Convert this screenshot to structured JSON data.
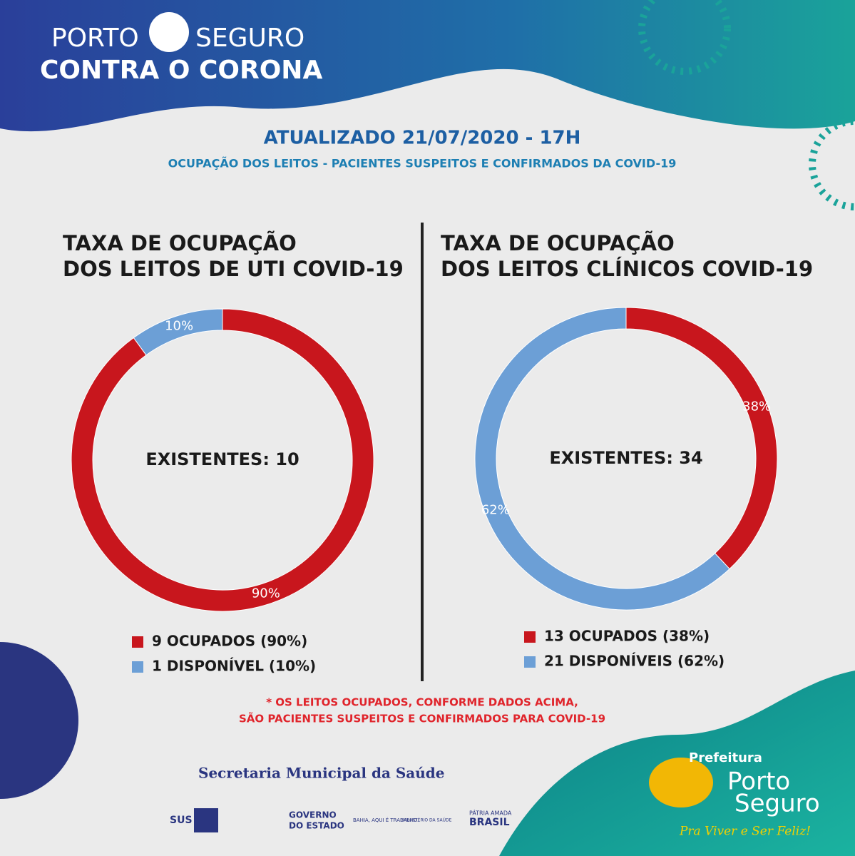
{
  "header": {
    "brand_left": "PORTO",
    "brand_right": "SEGURO",
    "brand_bottom": "CONTRA O CORONA"
  },
  "updated": "ATUALIZADO 21/07/2020 - 17H",
  "subtitle": "OCUPAÇÃO DOS LEITOS - PACIENTES SUSPEITOS E CONFIRMADOS DA COVID-19",
  "chart_data": [
    {
      "type": "donut",
      "title": [
        "TAXA DE OCUPAÇÃO",
        "DOS LEITOS DE UTI COVID-19"
      ],
      "center_label": "EXISTENTES: 10",
      "categories": [
        "9 OCUPADOS (90%)",
        "1 DISPONÍVEL (10%)"
      ],
      "values": [
        90,
        10
      ],
      "value_labels": [
        "90%",
        "10%"
      ],
      "colors": [
        "#c8161d",
        "#6c9fd6"
      ]
    },
    {
      "type": "donut",
      "title": [
        "TAXA DE OCUPAÇÃO",
        "DOS LEITOS CLÍNICOS COVID-19"
      ],
      "center_label": "EXISTENTES: 34",
      "categories": [
        "13 OCUPADOS (38%)",
        "21 DISPONÍVEIS (62%)"
      ],
      "values": [
        38,
        62
      ],
      "value_labels": [
        "38%",
        "62%"
      ],
      "colors": [
        "#c8161d",
        "#6c9fd6"
      ]
    }
  ],
  "footnote": [
    "* OS LEITOS OCUPADOS, CONFORME DADOS ACIMA,",
    "SÃO PACIENTES SUSPEITOS E CONFIRMADOS PARA COVID-19"
  ],
  "footer": {
    "secretaria": "Secretaria Municipal da Saúde",
    "sus": "SUS",
    "gov1": "GOVERNO",
    "gov2": "DO ESTADO",
    "bahia": "BAHIA, AQUI É TRABALHO.",
    "ministerio": "MINISTÉRIO DA SAÚDE",
    "patria": "PÁTRIA AMADA",
    "brasil": "BRASIL",
    "prefeitura": "Prefeitura",
    "porto": "Porto",
    "seguro": "Seguro",
    "slogan": "Pra Viver e Ser Feliz!"
  }
}
